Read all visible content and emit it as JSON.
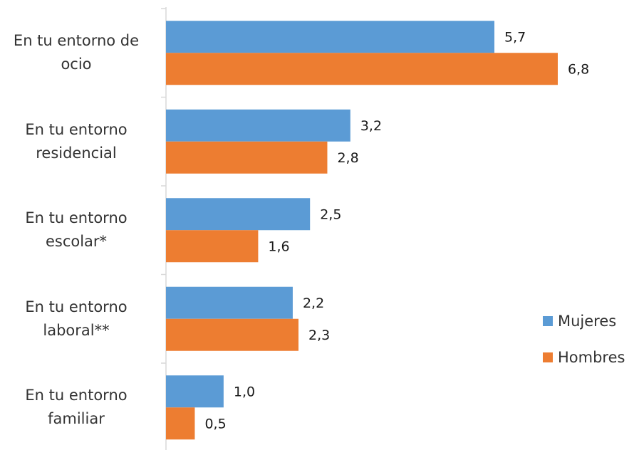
{
  "chart_data": {
    "type": "barh",
    "categories": [
      "En tu entorno de ocio",
      "En tu entorno residencial",
      "En tu entorno escolar*",
      "En tu entorno laboral**",
      "En tu entorno familiar"
    ],
    "series": [
      {
        "name": "Mujeres",
        "color": "#5b9bd5",
        "values": [
          5.7,
          3.2,
          2.5,
          2.2,
          1.0
        ],
        "value_labels": [
          "5,7",
          "3,2",
          "2,5",
          "2,2",
          "1,0"
        ]
      },
      {
        "name": "Hombres",
        "color": "#ed7d31",
        "values": [
          6.8,
          2.8,
          1.6,
          2.3,
          0.5
        ],
        "value_labels": [
          "6,8",
          "2,8",
          "1,6",
          "2,3",
          "0,5"
        ]
      }
    ],
    "legend": "right"
  }
}
